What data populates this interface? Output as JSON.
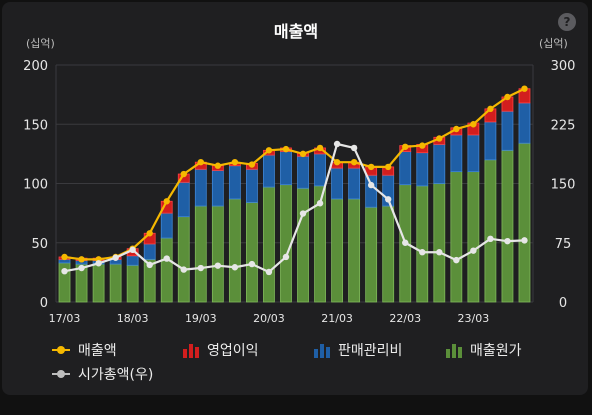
{
  "header": {
    "title": "매출액",
    "help": "?"
  },
  "units": {
    "left": "(십억)",
    "right": "(십억)"
  },
  "chart_data": {
    "type": "bar",
    "title": "매출액",
    "x_ticks": [
      "17/03",
      "18/03",
      "19/03",
      "20/03",
      "21/03",
      "22/03",
      "23/03"
    ],
    "y_left": {
      "label": "(십억)",
      "range": [
        0,
        200
      ],
      "ticks": [
        0,
        50,
        100,
        150,
        200
      ]
    },
    "y_right": {
      "label": "(십억)",
      "range": [
        0,
        300
      ],
      "ticks": [
        0,
        75,
        150,
        225,
        300
      ]
    },
    "grid": true,
    "legend_position": "bottom",
    "colors": {
      "revenue": "#f5b800",
      "operating_income": "#d21e1e",
      "sga": "#1f5fa6",
      "cogs": "#5b8f3a",
      "market_cap": "#e6e6e6"
    },
    "series": [
      {
        "name": "매출액",
        "type": "line",
        "axis": "left",
        "values": [
          38,
          36,
          36,
          38,
          45,
          58,
          85,
          108,
          118,
          115,
          118,
          116,
          128,
          129,
          125,
          130,
          118,
          118,
          114,
          114,
          131,
          132,
          138,
          146,
          150,
          163,
          173,
          180
        ]
      },
      {
        "name": "영업이익",
        "type": "bar",
        "axis": "left",
        "values": [
          2,
          2,
          2,
          2,
          6,
          9,
          10,
          7,
          6,
          5,
          2,
          5,
          4,
          3,
          3,
          5,
          5,
          5,
          7,
          7,
          5,
          7,
          6,
          6,
          10,
          11,
          12,
          12
        ]
      },
      {
        "name": "판매관리비",
        "type": "bar",
        "axis": "left",
        "values": [
          3,
          3,
          3,
          4,
          8,
          13,
          21,
          29,
          31,
          30,
          28,
          28,
          27,
          28,
          27,
          27,
          26,
          26,
          27,
          26,
          28,
          28,
          33,
          31,
          31,
          32,
          33,
          34
        ]
      },
      {
        "name": "매출원가",
        "type": "bar",
        "axis": "left",
        "values": [
          33,
          32,
          32,
          32,
          31,
          36,
          54,
          72,
          81,
          81,
          87,
          84,
          97,
          99,
          96,
          98,
          87,
          87,
          80,
          81,
          99,
          98,
          100,
          110,
          110,
          120,
          128,
          134
        ]
      },
      {
        "name": "시가총액(우)",
        "type": "line",
        "axis": "right",
        "values": [
          39,
          43,
          49,
          56,
          66,
          47,
          55,
          41,
          43,
          46,
          44,
          48,
          38,
          57,
          112,
          125,
          200,
          195,
          148,
          130,
          75,
          63,
          63,
          53,
          65,
          80,
          77,
          78
        ]
      }
    ]
  },
  "legend": [
    {
      "label": "매출액",
      "color": "#f5b800",
      "kind": "line"
    },
    {
      "label": "영업이익",
      "color": "#d21e1e",
      "kind": "bars"
    },
    {
      "label": "판매관리비",
      "color": "#1f5fa6",
      "kind": "bars"
    },
    {
      "label": "매출원가",
      "color": "#5b8f3a",
      "kind": "bars"
    },
    {
      "label": "시가총액(우)",
      "color": "#bdbdbd",
      "kind": "line"
    }
  ]
}
